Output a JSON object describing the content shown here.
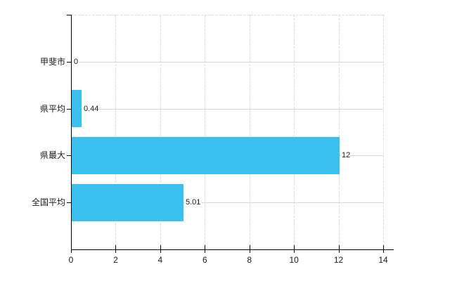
{
  "chart_data": {
    "type": "bar",
    "orientation": "horizontal",
    "title": "",
    "xlabel": "",
    "ylabel": "",
    "categories": [
      "甲斐市",
      "県平均",
      "県最大",
      "全国平均"
    ],
    "values": [
      0,
      0.44,
      12,
      5.01
    ],
    "value_labels": [
      "0",
      "0.44",
      "12",
      "5.01"
    ],
    "xlim": [
      0,
      14
    ],
    "xticks": [
      0,
      2,
      4,
      6,
      8,
      10,
      12,
      14
    ],
    "xtick_labels": [
      "0",
      "2",
      "4",
      "6",
      "8",
      "10",
      "12",
      "14"
    ],
    "legend": "none",
    "grid": {
      "vertical": "dashed",
      "horizontal": "solid-at-category-centers",
      "top_border": "dashed"
    },
    "colors": {
      "bar": "#3ac1f0",
      "axis": "#000000",
      "vertical_grid": "#d9d9d9",
      "horizontal_grid": "#d3d8d3",
      "text": "#1a1a1a",
      "background": "#ffffff"
    }
  }
}
